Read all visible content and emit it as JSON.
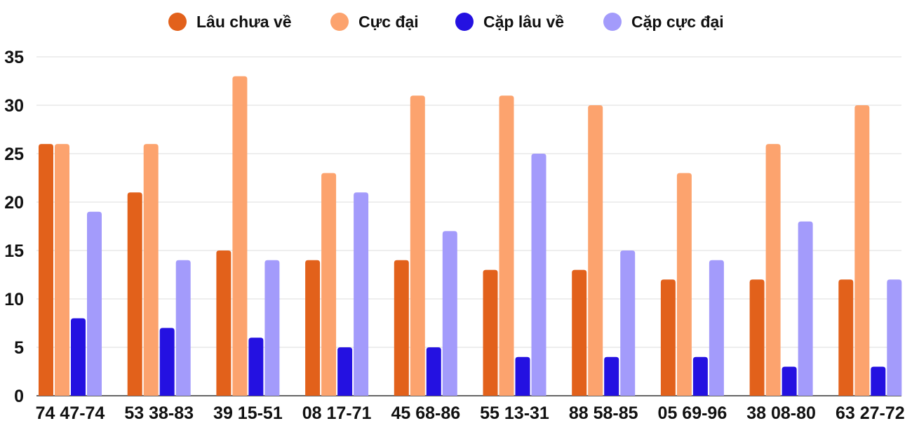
{
  "chart_data": {
    "type": "bar",
    "categories": [
      "74 47-74",
      "53 38-83",
      "39 15-51",
      "08 17-71",
      "45 68-86",
      "55 13-31",
      "88 58-85",
      "05 69-96",
      "38 08-80",
      "63 27-72"
    ],
    "series": [
      {
        "name": "Lâu chưa về",
        "color": "#E2611B",
        "values": [
          26,
          21,
          15,
          14,
          14,
          13,
          13,
          12,
          12,
          12
        ]
      },
      {
        "name": "Cực đại",
        "color": "#FCA36E",
        "values": [
          26,
          26,
          33,
          23,
          31,
          31,
          30,
          23,
          26,
          30
        ]
      },
      {
        "name": "Cặp lâu về",
        "color": "#2411E1",
        "values": [
          8,
          7,
          6,
          5,
          5,
          4,
          4,
          4,
          3,
          3
        ]
      },
      {
        "name": "Cặp cực đại",
        "color": "#A39BFB",
        "values": [
          19,
          14,
          14,
          21,
          17,
          25,
          15,
          14,
          18,
          12
        ]
      }
    ],
    "ylim": [
      0,
      35
    ],
    "yticks": [
      0,
      5,
      10,
      15,
      20,
      25,
      30,
      35
    ],
    "grid": true,
    "legend_position": "top"
  }
}
